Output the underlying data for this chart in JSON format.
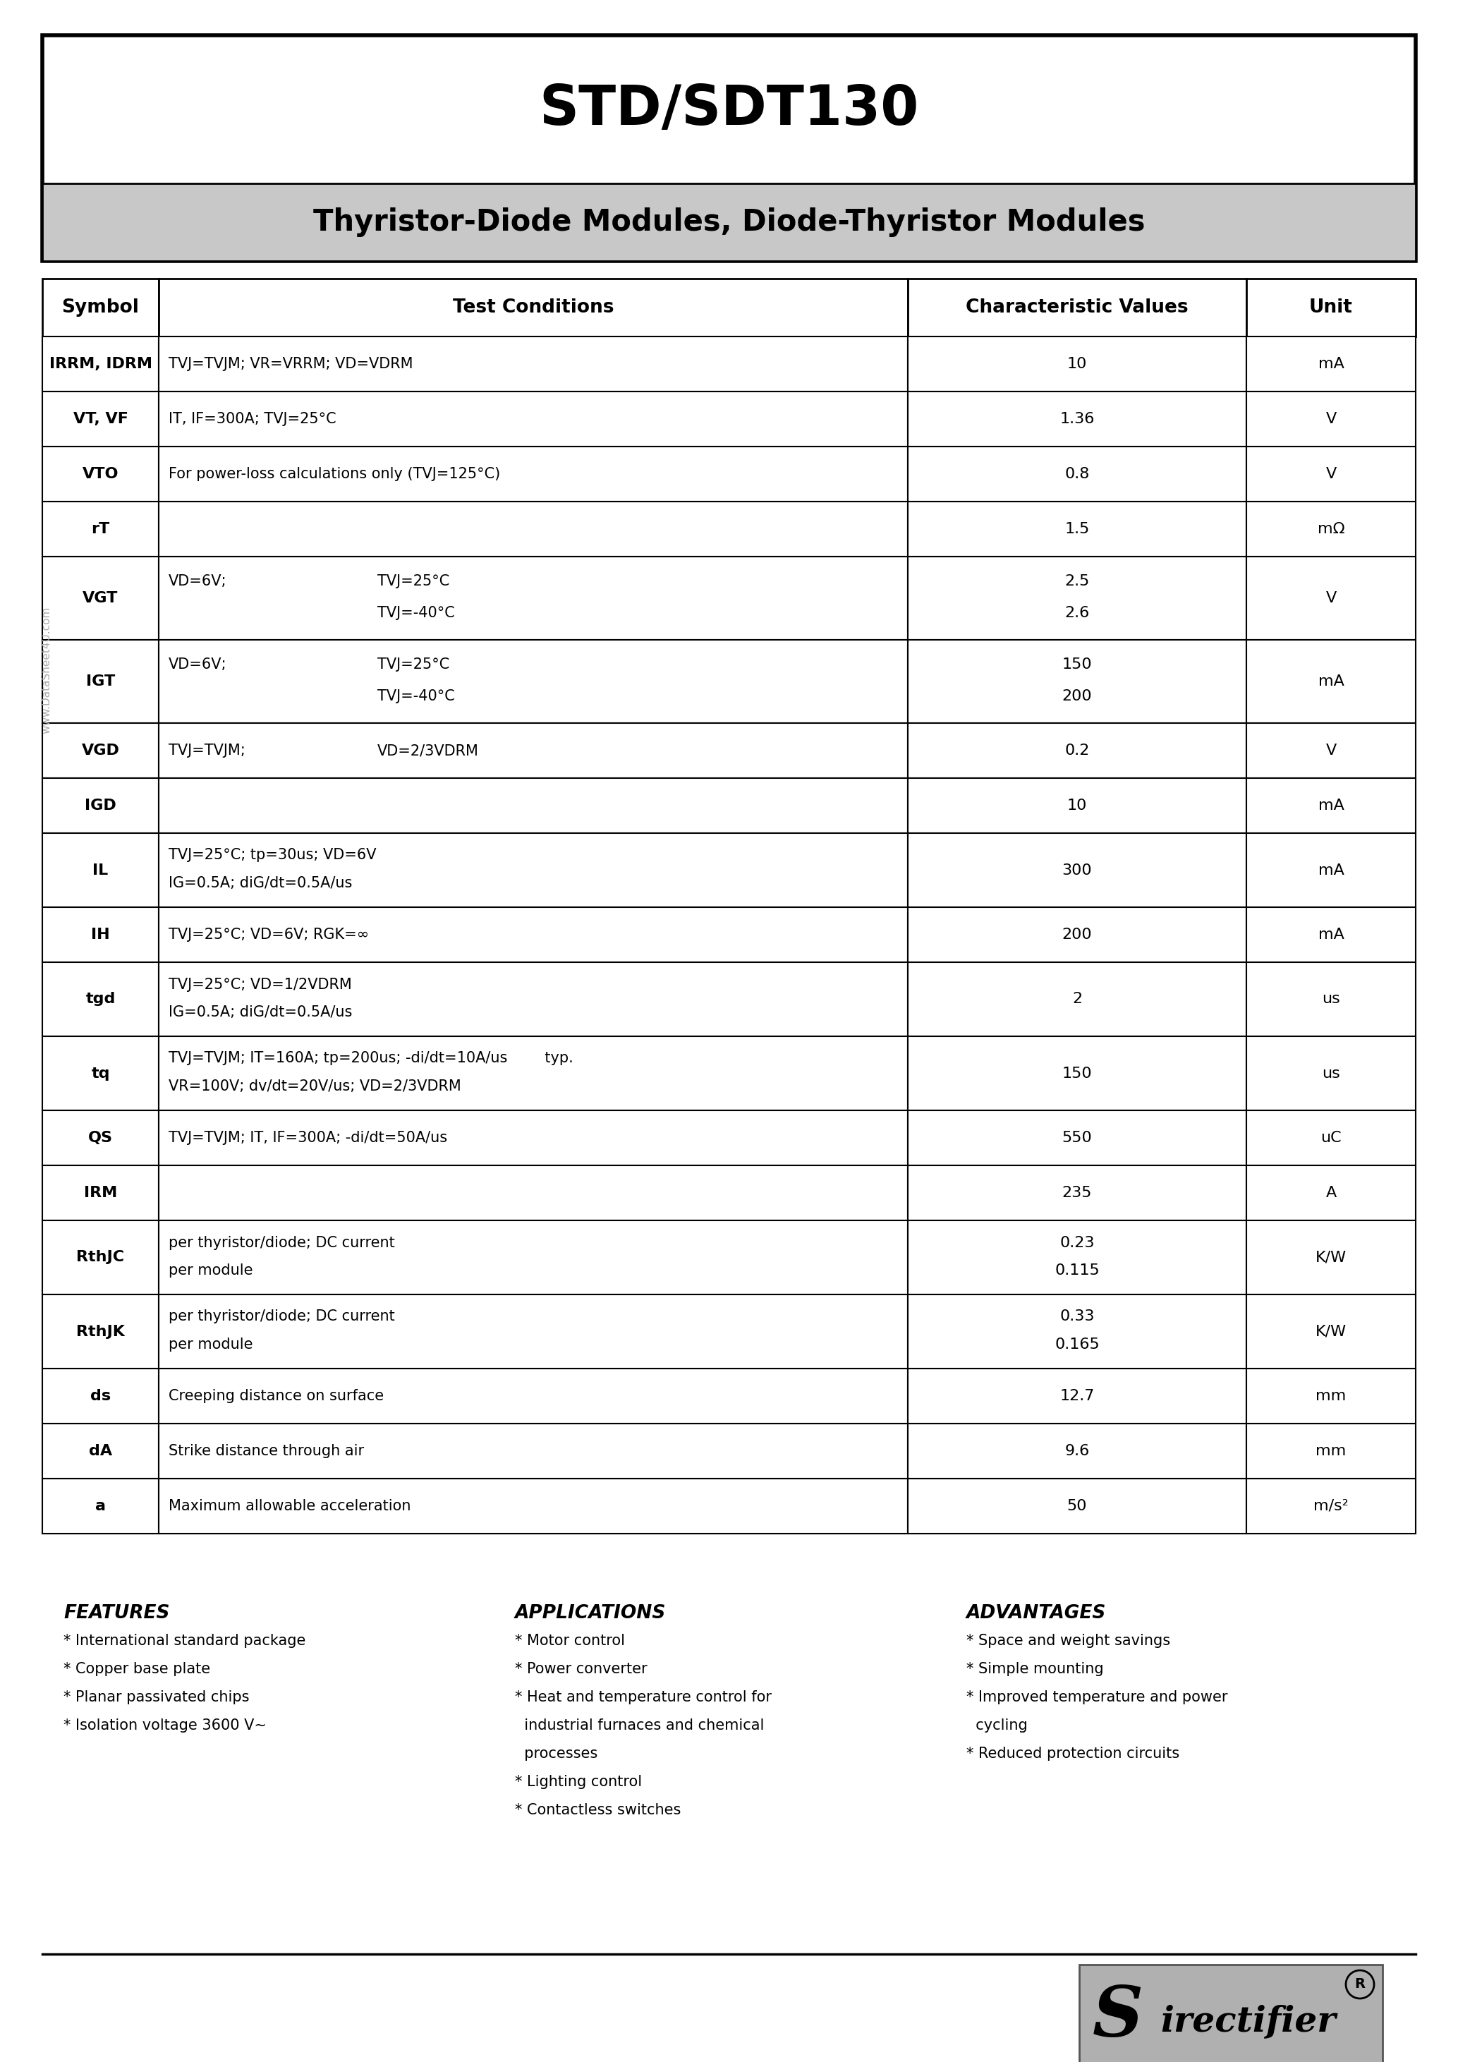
{
  "title": "STD/SDT130",
  "subtitle": "Thyristor-Diode Modules, Diode-Thyristor Modules",
  "table_headers": [
    "Symbol",
    "Test Conditions",
    "Characteristic Values",
    "Unit"
  ],
  "rows_data": [
    [
      "IRRM, IDRM",
      [
        [
          "TVJ=TVJM; VR=VRRM; VD=VDRM"
        ]
      ],
      "10",
      "mA",
      78
    ],
    [
      "VT, VF",
      [
        [
          "IT, IF=300A; TVJ=25°C"
        ]
      ],
      "1.36",
      "V",
      78
    ],
    [
      "VTO",
      [
        [
          "For power-loss calculations only (TVJ=125°C)"
        ]
      ],
      "0.8",
      "V",
      78
    ],
    [
      "rT",
      [
        [
          ""
        ]
      ],
      "1.5",
      "mΩ",
      78
    ],
    [
      "VGT",
      [
        [
          "VD=6V;",
          "TVJ=25°C"
        ],
        [
          "",
          "TVJ=-40°C"
        ]
      ],
      "2.5\n2.6",
      "V",
      118
    ],
    [
      "IGT",
      [
        [
          "VD=6V;",
          "TVJ=25°C"
        ],
        [
          "",
          "TVJ=-40°C"
        ]
      ],
      "150\n200",
      "mA",
      118
    ],
    [
      "VGD",
      [
        [
          "TVJ=TVJM;",
          "VD=2/3VDRM"
        ]
      ],
      "0.2",
      "V",
      78
    ],
    [
      "IGD",
      [
        [
          ""
        ]
      ],
      "10",
      "mA",
      78
    ],
    [
      "IL",
      [
        [
          "TVJ=25°C; tp=30us; VD=6V"
        ],
        [
          "IG=0.5A; diG/dt=0.5A/us"
        ]
      ],
      "300",
      "mA",
      105
    ],
    [
      "IH",
      [
        [
          "TVJ=25°C; VD=6V; RGK=∞"
        ]
      ],
      "200",
      "mA",
      78
    ],
    [
      "tgd",
      [
        [
          "TVJ=25°C; VD=1/2VDRM"
        ],
        [
          "IG=0.5A; diG/dt=0.5A/us"
        ]
      ],
      "2",
      "us",
      105
    ],
    [
      "tq",
      [
        [
          "TVJ=TVJM; IT=160A; tp=200us; -di/dt=10A/us        typ."
        ],
        [
          "VR=100V; dv/dt=20V/us; VD=2/3VDRM"
        ]
      ],
      "150",
      "us",
      105
    ],
    [
      "QS",
      [
        [
          "TVJ=TVJM; IT, IF=300A; -di/dt=50A/us"
        ]
      ],
      "550",
      "uC",
      78
    ],
    [
      "IRM",
      [
        [
          ""
        ]
      ],
      "235",
      "A",
      78
    ],
    [
      "RthJC",
      [
        [
          "per thyristor/diode; DC current"
        ],
        [
          "per module"
        ]
      ],
      "0.23\n0.115",
      "K/W",
      105
    ],
    [
      "RthJK",
      [
        [
          "per thyristor/diode; DC current"
        ],
        [
          "per module"
        ]
      ],
      "0.33\n0.165",
      "K/W",
      105
    ],
    [
      "ds",
      [
        [
          "Creeping distance on surface"
        ]
      ],
      "12.7",
      "mm",
      78
    ],
    [
      "dA",
      [
        [
          "Strike distance through air"
        ]
      ],
      "9.6",
      "mm",
      78
    ],
    [
      "a",
      [
        [
          "Maximum allowable acceleration"
        ]
      ],
      "50",
      "m/s²",
      78
    ]
  ],
  "features_title": "FEATURES",
  "features": [
    "* International standard package",
    "* Copper base plate",
    "* Planar passivated chips",
    "* Isolation voltage 3600 V~"
  ],
  "applications_title": "APPLICATIONS",
  "applications": [
    "* Motor control",
    "* Power converter",
    "* Heat and temperature control for",
    "  industrial furnaces and chemical",
    "  processes",
    "* Lighting control",
    "* Contactless switches"
  ],
  "advantages_title": "ADVANTAGES",
  "advantages": [
    "* Space and weight savings",
    "* Simple mounting",
    "* Improved temperature and power",
    "  cycling",
    "* Reduced protection circuits"
  ],
  "watermark": "www.DataSheet4U.com",
  "footer_url": "www.DataSheet4U.com",
  "bg_color": "#ffffff",
  "gray_bg": "#c8c8c8",
  "logo_gray": "#b0b0b0"
}
